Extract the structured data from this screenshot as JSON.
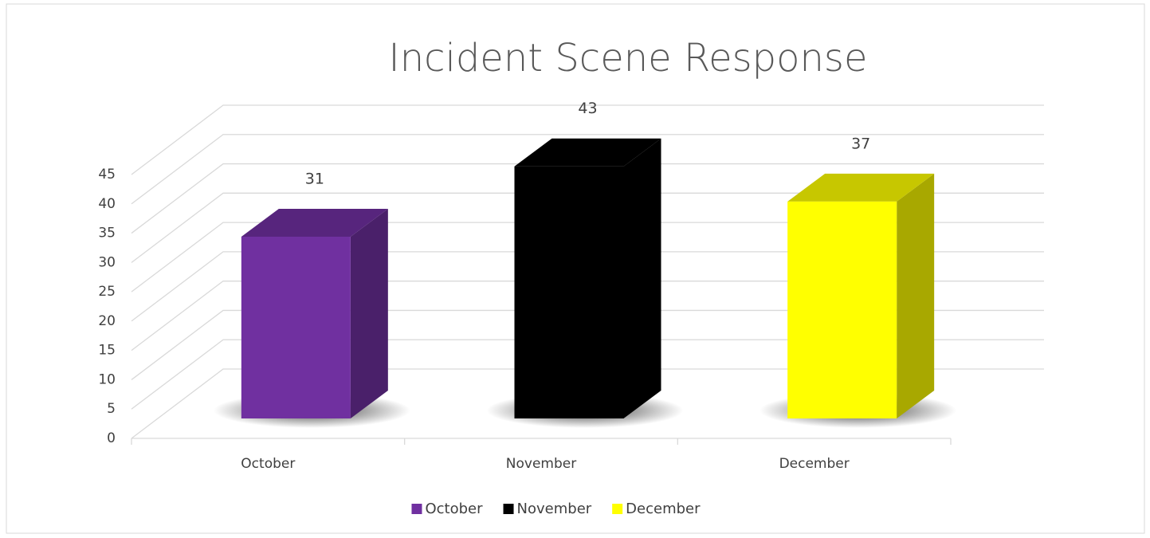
{
  "chart_data": {
    "type": "bar3d",
    "title": "Incident Scene Response",
    "categories": [
      "October",
      "November",
      "December"
    ],
    "values": [
      31,
      43,
      37
    ],
    "colors": [
      "#7030a0",
      "#000000",
      "#ffff00"
    ],
    "ylim": [
      0,
      45
    ],
    "yticks": [
      0,
      5,
      10,
      15,
      20,
      25,
      30,
      35,
      40,
      45
    ],
    "grid": true,
    "legend": "bottom"
  }
}
